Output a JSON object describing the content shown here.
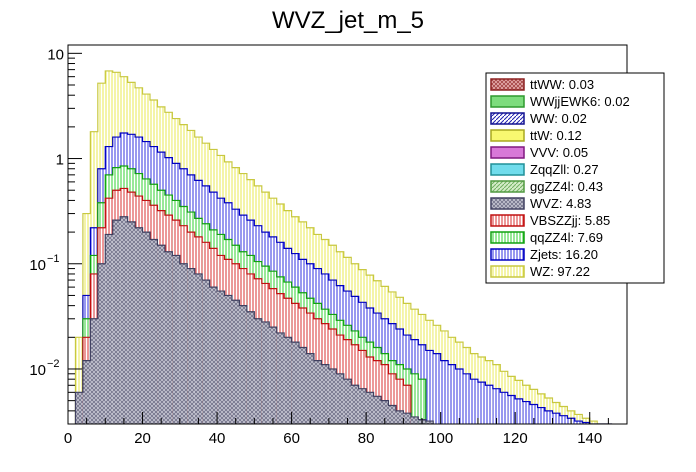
{
  "chart_data": {
    "type": "bar",
    "subtype": "stacked-histogram",
    "title": "WVZ_jet_m_5",
    "xlabel": "",
    "ylabel": "",
    "xlim": [
      0,
      150
    ],
    "ylim_log": [
      0.003,
      12
    ],
    "yscale": "log",
    "x_ticks": [
      0,
      20,
      40,
      60,
      80,
      100,
      120,
      140
    ],
    "y_ticks": [
      {
        "value": 0.01,
        "base": "10",
        "exp": "−2"
      },
      {
        "value": 0.1,
        "base": "10",
        "exp": "−1"
      },
      {
        "value": 1,
        "base": "1",
        "exp": ""
      },
      {
        "value": 10,
        "base": "10",
        "exp": ""
      }
    ],
    "bin_width": 1,
    "legend_position": "top-right",
    "legend": [
      {
        "label": "ttWW: 0.03",
        "color": "#c86464",
        "pattern": "cross",
        "border": "#8b2020"
      },
      {
        "label": "WWjjEWK6: 0.02",
        "color": "#7ddc7d",
        "pattern": "solid",
        "border": "#2e9a2e"
      },
      {
        "label": "WW: 0.02",
        "color": "#6060d8",
        "pattern": "hatch",
        "border": "#101090"
      },
      {
        "label": "ttW: 0.12",
        "color": "#f8f870",
        "pattern": "solid",
        "border": "#a8a820"
      },
      {
        "label": "VVV: 0.05",
        "color": "#d878d8",
        "pattern": "solid",
        "border": "#801880"
      },
      {
        "label": "ZqqZll: 0.27",
        "color": "#70dcec",
        "pattern": "solid",
        "border": "#209098"
      },
      {
        "label": "ggZZ4l: 0.43",
        "color": "#b4e0a8",
        "pattern": "hatch",
        "border": "#509a40"
      },
      {
        "label": "WVZ: 4.83",
        "color": "#a8a8b8",
        "pattern": "cross",
        "border": "#404060"
      },
      {
        "label": "VBSZZjj: 5.85",
        "color": "#e06060",
        "pattern": "vlines",
        "border": "#c01010"
      },
      {
        "label": "qqZZ4l: 7.69",
        "color": "#60e060",
        "pattern": "vlines",
        "border": "#10a010"
      },
      {
        "label": "Zjets: 16.20",
        "color": "#4040e0",
        "pattern": "vlines",
        "border": "#0000c0"
      },
      {
        "label": "WZ: 97.22",
        "color": "#ffff80",
        "pattern": "vlines",
        "border": "#c8c840"
      }
    ],
    "series": [
      {
        "name": "WVZ",
        "x": [
          3,
          5,
          7,
          9,
          11,
          13,
          15,
          17,
          19,
          21,
          23,
          25,
          27,
          29,
          31,
          33,
          35,
          37,
          39,
          41,
          43,
          45,
          47,
          49,
          51,
          53,
          55,
          57,
          59,
          61,
          63,
          65,
          67,
          69,
          71,
          73,
          75,
          77,
          79,
          81,
          83,
          85,
          87,
          89,
          91,
          93,
          95,
          97
        ],
        "values": [
          0.006,
          0.012,
          0.03,
          0.1,
          0.19,
          0.26,
          0.28,
          0.25,
          0.22,
          0.2,
          0.17,
          0.15,
          0.13,
          0.12,
          0.1,
          0.09,
          0.08,
          0.07,
          0.06,
          0.055,
          0.05,
          0.045,
          0.04,
          0.035,
          0.03,
          0.028,
          0.025,
          0.022,
          0.02,
          0.018,
          0.016,
          0.014,
          0.012,
          0.011,
          0.01,
          0.009,
          0.008,
          0.007,
          0.0065,
          0.006,
          0.0055,
          0.005,
          0.0045,
          0.004,
          0.0038,
          0.0035,
          0.0033,
          0.0032
        ]
      },
      {
        "name": "VBSZZjj",
        "x": [
          5,
          7,
          9,
          11,
          13,
          15,
          17,
          19,
          21,
          23,
          25,
          27,
          29,
          31,
          33,
          35,
          37,
          39,
          41,
          43,
          45,
          47,
          49,
          51,
          53,
          55,
          57,
          59,
          61,
          63,
          65,
          67,
          69,
          71,
          73,
          75,
          77,
          79,
          81,
          83,
          85,
          87,
          89,
          91
        ],
        "values": [
          0.02,
          0.08,
          0.22,
          0.42,
          0.5,
          0.52,
          0.48,
          0.44,
          0.4,
          0.36,
          0.32,
          0.29,
          0.26,
          0.23,
          0.2,
          0.18,
          0.16,
          0.14,
          0.12,
          0.11,
          0.1,
          0.09,
          0.08,
          0.072,
          0.065,
          0.058,
          0.052,
          0.047,
          0.042,
          0.038,
          0.034,
          0.03,
          0.027,
          0.024,
          0.021,
          0.019,
          0.017,
          0.015,
          0.013,
          0.012,
          0.011,
          0.009,
          0.008,
          0.007
        ]
      },
      {
        "name": "qqZZ4l",
        "x": [
          5,
          7,
          9,
          11,
          13,
          15,
          17,
          19,
          21,
          23,
          25,
          27,
          29,
          31,
          33,
          35,
          37,
          39,
          41,
          43,
          45,
          47,
          49,
          51,
          53,
          55,
          57,
          59,
          61,
          63,
          65,
          67,
          69,
          71,
          73,
          75,
          77,
          79,
          81,
          83,
          85,
          87,
          89,
          91,
          93,
          95
        ],
        "values": [
          0.03,
          0.12,
          0.38,
          0.7,
          0.82,
          0.85,
          0.8,
          0.72,
          0.64,
          0.57,
          0.5,
          0.45,
          0.4,
          0.35,
          0.31,
          0.27,
          0.24,
          0.21,
          0.19,
          0.17,
          0.15,
          0.13,
          0.12,
          0.105,
          0.095,
          0.085,
          0.075,
          0.067,
          0.06,
          0.053,
          0.047,
          0.042,
          0.037,
          0.033,
          0.029,
          0.026,
          0.023,
          0.02,
          0.018,
          0.016,
          0.014,
          0.012,
          0.011,
          0.01,
          0.009,
          0.008
        ]
      },
      {
        "name": "Zjets",
        "x": [
          5,
          7,
          9,
          11,
          13,
          15,
          17,
          19,
          21,
          23,
          25,
          27,
          29,
          31,
          33,
          35,
          37,
          39,
          41,
          43,
          45,
          47,
          49,
          51,
          53,
          55,
          57,
          59,
          61,
          63,
          65,
          67,
          69,
          71,
          73,
          75,
          77,
          79,
          81,
          83,
          85,
          87,
          89,
          91,
          93,
          95,
          97,
          99,
          101,
          103,
          105,
          107,
          109,
          111,
          113,
          115,
          117,
          119,
          121,
          123,
          125,
          127,
          129,
          131,
          133,
          135,
          137,
          139,
          141,
          143,
          145
        ],
        "values": [
          0.05,
          0.22,
          0.8,
          1.3,
          1.6,
          1.75,
          1.7,
          1.6,
          1.45,
          1.3,
          1.15,
          1.02,
          0.9,
          0.8,
          0.7,
          0.62,
          0.55,
          0.48,
          0.42,
          0.38,
          0.33,
          0.29,
          0.26,
          0.23,
          0.2,
          0.18,
          0.16,
          0.14,
          0.125,
          0.11,
          0.1,
          0.09,
          0.08,
          0.07,
          0.062,
          0.055,
          0.049,
          0.043,
          0.038,
          0.034,
          0.03,
          0.027,
          0.024,
          0.021,
          0.019,
          0.017,
          0.015,
          0.014,
          0.012,
          0.011,
          0.01,
          0.009,
          0.008,
          0.0075,
          0.007,
          0.0065,
          0.006,
          0.0056,
          0.0052,
          0.0049,
          0.0046,
          0.0043,
          0.004,
          0.0038,
          0.0036,
          0.0034,
          0.0032,
          0.0031,
          0.003,
          0.003,
          0.003
        ]
      },
      {
        "name": "WZ",
        "x": [
          3,
          5,
          7,
          9,
          11,
          13,
          15,
          17,
          19,
          21,
          23,
          25,
          27,
          29,
          31,
          33,
          35,
          37,
          39,
          41,
          43,
          45,
          47,
          49,
          51,
          53,
          55,
          57,
          59,
          61,
          63,
          65,
          67,
          69,
          71,
          73,
          75,
          77,
          79,
          81,
          83,
          85,
          87,
          89,
          91,
          93,
          95,
          97,
          99,
          101,
          103,
          105,
          107,
          109,
          111,
          113,
          115,
          117,
          119,
          121,
          123,
          125,
          127,
          129,
          131,
          133,
          135,
          137,
          139,
          141,
          143,
          145
        ],
        "values": [
          0.02,
          0.3,
          1.8,
          5.2,
          6.8,
          6.6,
          6.0,
          5.3,
          4.7,
          4.1,
          3.6,
          3.1,
          2.75,
          2.4,
          2.1,
          1.85,
          1.6,
          1.4,
          1.22,
          1.07,
          0.93,
          0.82,
          0.72,
          0.63,
          0.55,
          0.48,
          0.42,
          0.37,
          0.32,
          0.28,
          0.25,
          0.22,
          0.19,
          0.17,
          0.15,
          0.13,
          0.115,
          0.1,
          0.088,
          0.078,
          0.069,
          0.061,
          0.054,
          0.048,
          0.042,
          0.037,
          0.033,
          0.029,
          0.026,
          0.023,
          0.02,
          0.018,
          0.016,
          0.014,
          0.013,
          0.012,
          0.011,
          0.0095,
          0.0085,
          0.0078,
          0.007,
          0.0064,
          0.0058,
          0.0053,
          0.0048,
          0.0044,
          0.004,
          0.0037,
          0.0034,
          0.0032,
          0.003,
          0.003
        ]
      }
    ]
  }
}
